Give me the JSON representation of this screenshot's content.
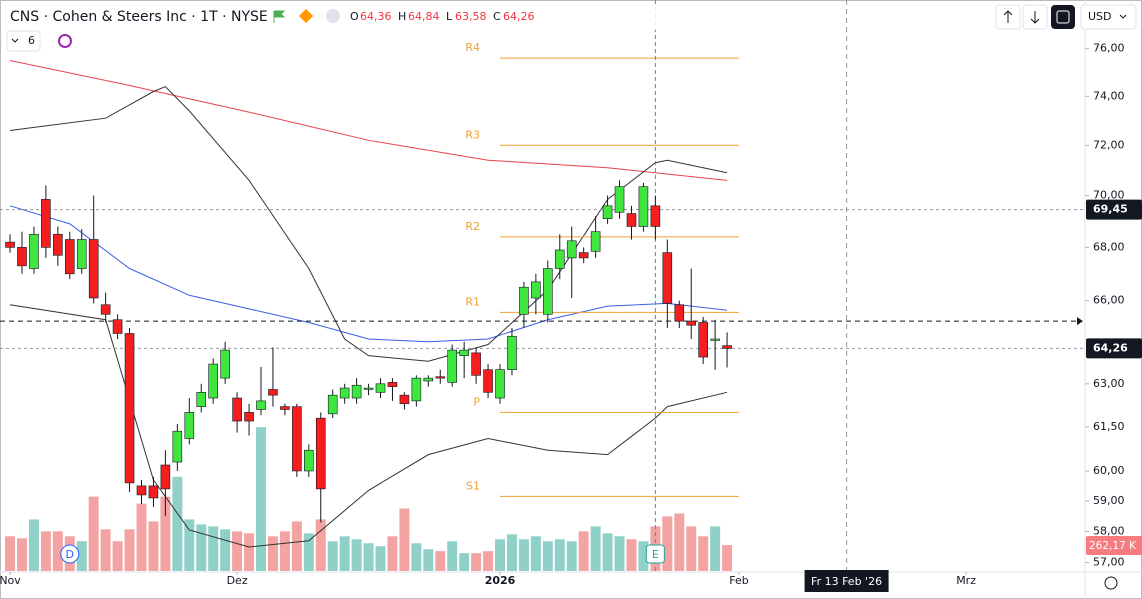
{
  "chart_data": {
    "type": "candlestick",
    "header": {
      "symbol": "CNS · Cohen & Steers Inc · 1T · NYSE",
      "o": "O",
      "open": "64,36",
      "h": "H",
      "high": "64,84",
      "l": "L",
      "low": "63,58",
      "c": "C",
      "close": "64,26",
      "interval_count": "6",
      "currency": "USD"
    },
    "log_scale": true,
    "ylim": [
      56.7,
      78.1
    ],
    "yticks": [
      {
        "value": 76,
        "label": "76,00"
      },
      {
        "value": 74,
        "label": "74,00"
      },
      {
        "value": 72,
        "label": "72,00"
      },
      {
        "value": 70,
        "label": "70,00"
      },
      {
        "value": 68,
        "label": "68,00"
      },
      {
        "value": 66,
        "label": "66,00"
      },
      {
        "value": 63,
        "label": "63,00"
      },
      {
        "value": 61.5,
        "label": "61,50"
      },
      {
        "value": 60,
        "label": "60,00"
      },
      {
        "value": 59,
        "label": "59,00"
      },
      {
        "value": 58,
        "label": "58,00"
      },
      {
        "value": 57,
        "label": "57,00"
      }
    ],
    "xlim": [
      -0.84,
      89.95
    ],
    "xticks": [
      {
        "value": 0,
        "label": "Nov"
      },
      {
        "value": 19,
        "label": "Dez"
      },
      {
        "value": 41,
        "label": "2026"
      },
      {
        "value": 61,
        "label": "Feb"
      },
      {
        "value": 80,
        "label": "Mrz"
      }
    ],
    "up_color": "#3ee63e",
    "down_color": "#f41e1e",
    "open": [
      68.2,
      68.0,
      67.2,
      69.85,
      68.5,
      68.3,
      67.2,
      68.3,
      65.85,
      65.3,
      64.8,
      59.5,
      59.5,
      60.2,
      60.3,
      61.1,
      62.2,
      62.5,
      63.2,
      62.5,
      62.0,
      62.1,
      62.8,
      62.2,
      62.2,
      60.0,
      61.8,
      61.95,
      62.5,
      62.5,
      62.8,
      62.7,
      63.05,
      62.6,
      62.4,
      63.1,
      63.25,
      63.05,
      64.0,
      64.1,
      63.5,
      62.5,
      63.5,
      65.5,
      66.1,
      65.5,
      67.2,
      67.6,
      67.8,
      67.85,
      69.1,
      69.35,
      69.3,
      68.8,
      69.6,
      67.8,
      65.85,
      65.25,
      65.2,
      64.55,
      64.36
    ],
    "high": [
      68.5,
      68.6,
      68.8,
      70.4,
      68.8,
      68.6,
      68.7,
      70.0,
      66.3,
      65.5,
      65.0,
      59.7,
      59.8,
      60.7,
      61.6,
      62.5,
      63.0,
      63.9,
      64.5,
      62.7,
      62.3,
      63.6,
      64.3,
      62.3,
      62.3,
      60.9,
      62.0,
      62.8,
      63.0,
      63.2,
      63.0,
      63.2,
      63.2,
      62.7,
      63.3,
      63.3,
      63.5,
      64.4,
      64.5,
      64.3,
      63.7,
      63.7,
      65.0,
      66.7,
      67.0,
      67.5,
      68.5,
      68.8,
      68.0,
      69.2,
      70.0,
      70.6,
      69.6,
      70.5,
      70.0,
      68.3,
      66.0,
      67.2,
      65.4,
      65.3,
      64.84
    ],
    "low": [
      67.8,
      67.0,
      67.0,
      67.6,
      67.3,
      66.8,
      67.0,
      65.9,
      65.2,
      64.6,
      59.3,
      58.9,
      58.8,
      58.5,
      60.0,
      60.9,
      62.0,
      62.3,
      63.0,
      61.3,
      61.2,
      61.9,
      62.2,
      61.9,
      59.8,
      59.8,
      58.3,
      61.8,
      62.3,
      62.3,
      62.6,
      62.5,
      62.4,
      62.1,
      62.2,
      62.9,
      63.0,
      62.9,
      63.2,
      63.0,
      62.5,
      62.3,
      63.3,
      65.0,
      65.5,
      65.2,
      66.8,
      66.1,
      67.4,
      67.6,
      68.9,
      69.1,
      68.3,
      68.6,
      68.3,
      65.0,
      65.0,
      64.6,
      63.7,
      63.5,
      63.58
    ],
    "close": [
      68.0,
      67.3,
      68.5,
      68.0,
      67.7,
      67.0,
      68.3,
      66.1,
      65.5,
      64.8,
      59.6,
      59.2,
      59.1,
      59.4,
      61.35,
      62.0,
      62.7,
      63.7,
      64.2,
      61.7,
      61.7,
      62.4,
      62.6,
      62.1,
      60.0,
      60.7,
      59.4,
      62.6,
      62.85,
      62.95,
      62.85,
      63.0,
      62.9,
      62.3,
      63.2,
      63.2,
      63.2,
      64.2,
      64.2,
      63.3,
      62.7,
      63.5,
      64.7,
      66.5,
      66.7,
      67.2,
      67.9,
      68.25,
      67.6,
      68.6,
      69.6,
      70.35,
      68.8,
      70.35,
      68.8,
      65.9,
      65.25,
      65.1,
      63.95,
      64.6,
      64.26
    ],
    "volume": [
      350,
      330,
      520,
      400,
      400,
      350,
      300,
      750,
      420,
      300,
      420,
      680,
      500,
      750,
      950,
      520,
      470,
      450,
      420,
      400,
      380,
      1450,
      350,
      400,
      500,
      380,
      520,
      300,
      350,
      320,
      280,
      250,
      350,
      630,
      280,
      220,
      200,
      300,
      180,
      180,
      200,
      320,
      370,
      320,
      350,
      300,
      320,
      300,
      400,
      450,
      380,
      350,
      320,
      300,
      450,
      550,
      580,
      450,
      350,
      450,
      262.17
    ],
    "volume_label": "262,17 K",
    "up_volume_color": "#8fd0c8",
    "down_volume_color": "#f4a3a3",
    "lines": [
      {
        "color": "#e8444c",
        "x": [
          0,
          10,
          20,
          30,
          40,
          50,
          60
        ],
        "values": [
          75.5,
          74.45,
          73.35,
          72.2,
          71.4,
          71.1,
          70.6
        ]
      },
      {
        "color": "#3b5ee8",
        "x": [
          0,
          5,
          10,
          15,
          20,
          25,
          30,
          35,
          40,
          45,
          50,
          55,
          60
        ],
        "values": [
          69.6,
          68.9,
          67.2,
          66.2,
          65.7,
          65.2,
          64.6,
          64.5,
          64.6,
          65.3,
          65.8,
          65.9,
          65.65
        ]
      },
      {
        "color": "#333333",
        "x": [
          0,
          8,
          12,
          13,
          15,
          20,
          25,
          28,
          30,
          35,
          40,
          45,
          50,
          54,
          55,
          60
        ],
        "values": [
          72.6,
          73.1,
          74.2,
          74.4,
          73.4,
          70.6,
          67.2,
          64.6,
          64.0,
          63.8,
          64.4,
          66.4,
          69.85,
          71.3,
          71.4,
          70.9
        ]
      },
      {
        "color": "#333333",
        "x": [
          0,
          8,
          12,
          15,
          20,
          25,
          30,
          35,
          40,
          45,
          50,
          54,
          55,
          60
        ],
        "values": [
          65.85,
          65.3,
          59.7,
          58.05,
          57.5,
          57.7,
          59.35,
          60.55,
          61.1,
          60.7,
          60.55,
          61.8,
          62.2,
          62.7
        ]
      }
    ],
    "pivots": {
      "color": "#f0a030",
      "x_start": 41,
      "x_end": 61,
      "levels": [
        {
          "name": "R4",
          "value": 75.6
        },
        {
          "name": "R3",
          "value": 72.0
        },
        {
          "name": "R2",
          "value": 68.4
        },
        {
          "name": "R1",
          "value": 65.57
        },
        {
          "name": "P",
          "value": 62.0
        },
        {
          "name": "S1",
          "value": 59.15
        }
      ]
    },
    "price_lines": [
      {
        "value": 69.45,
        "label": "69,45"
      },
      {
        "value": 64.26,
        "label": "64,26"
      }
    ],
    "dashed_line": 65.25,
    "event": {
      "x": 54,
      "label": "E"
    },
    "dividend": {
      "x": 5,
      "label": "D"
    },
    "crosshair": {
      "x": 70,
      "label": "Fr 13 Feb '26"
    }
  }
}
